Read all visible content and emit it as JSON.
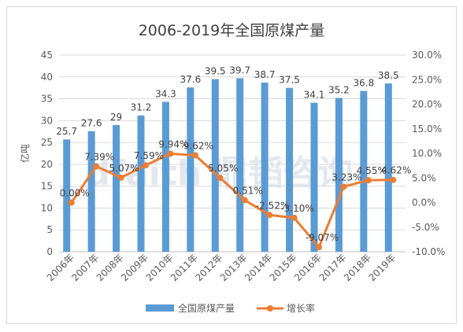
{
  "chart_data": {
    "type": "bar-line",
    "title": "2006-2019年全国原煤产量",
    "ylabel": "亿吨",
    "categories": [
      "2006年",
      "2007年",
      "2008年",
      "2009年",
      "2010年",
      "2011年",
      "2012年",
      "2013年",
      "2014年",
      "2015年",
      "2016年",
      "2017年",
      "2018年",
      "2019年"
    ],
    "series": [
      {
        "name": "全国原煤产量",
        "kind": "bar",
        "axis": "left",
        "color": "#5b9bd5",
        "values": [
          25.7,
          27.6,
          29,
          31.2,
          34.3,
          37.6,
          39.5,
          39.7,
          38.7,
          37.5,
          34.1,
          35.2,
          36.8,
          38.5
        ],
        "labels": [
          "25.7",
          "27.6",
          "29",
          "31.2",
          "34.3",
          "37.6",
          "39.5",
          "39.7",
          "38.7",
          "37.5",
          "34.1",
          "35.2",
          "36.8",
          "38.5"
        ]
      },
      {
        "name": "增长率",
        "kind": "line",
        "axis": "right",
        "color": "#ed7d31",
        "values": [
          0.0,
          7.39,
          5.07,
          7.59,
          9.94,
          9.62,
          5.05,
          0.51,
          -2.52,
          -3.1,
          -9.07,
          3.23,
          4.55,
          4.62
        ],
        "labels": [
          "0.00%",
          "7.39%",
          "5.07%",
          "7.59%",
          "9.94%",
          "9.62%",
          "5.05%",
          "0.51%",
          "-2.52%",
          "-3.10%",
          "-9.07%",
          "3.23%",
          "4.55%",
          "4.62%"
        ]
      }
    ],
    "ylim_left": [
      0,
      45
    ],
    "yticks_left": [
      "0",
      "5",
      "10",
      "15",
      "20",
      "25",
      "30",
      "35",
      "40",
      "45"
    ],
    "ylim_right": [
      -10,
      30
    ],
    "yticks_right": [
      "-10.0%",
      "-5.0%",
      "0.0%",
      "5.0%",
      "10.0%",
      "15.0%",
      "20.0%",
      "25.0%",
      "30.0%"
    ],
    "grid": true,
    "legend_position": "bottom",
    "watermark": "dfaith 鼎韬咨询"
  }
}
